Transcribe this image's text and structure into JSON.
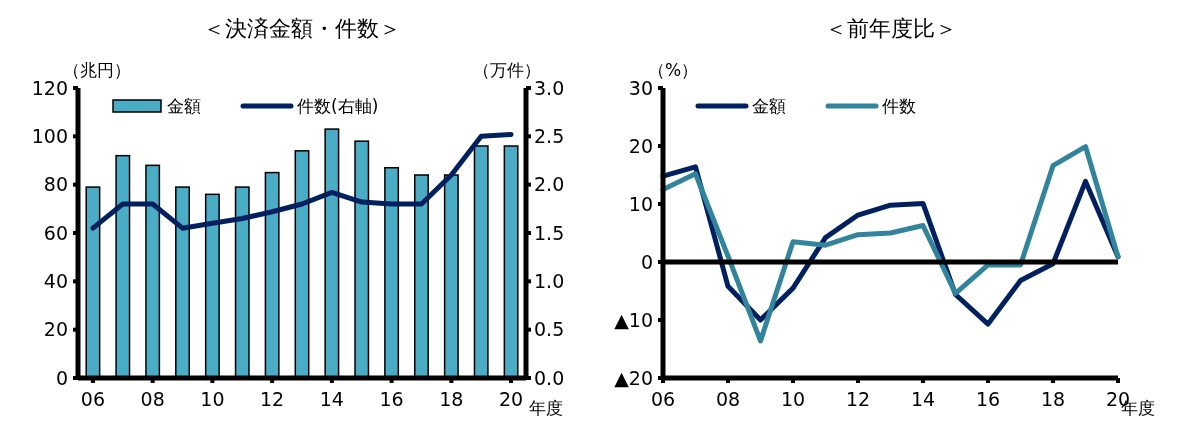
{
  "chart_data": [
    {
      "type": "bar",
      "title": "＜決済金額・件数＞",
      "ylabel": "（兆円）",
      "y2label": "（万件）",
      "xlabel": "年度",
      "x": [
        2006,
        2007,
        2008,
        2009,
        2010,
        2011,
        2012,
        2013,
        2014,
        2015,
        2016,
        2017,
        2018,
        2019,
        2020
      ],
      "xlim": [
        2005.5,
        2020.5
      ],
      "xticks": [
        {
          "value": 2006,
          "label": "06"
        },
        {
          "value": 2008,
          "label": "08"
        },
        {
          "value": 2010,
          "label": "10"
        },
        {
          "value": 2012,
          "label": "12"
        },
        {
          "value": 2014,
          "label": "14"
        },
        {
          "value": 2016,
          "label": "16"
        },
        {
          "value": 2018,
          "label": "18"
        },
        {
          "value": 2020,
          "label": "20"
        }
      ],
      "ylim": [
        0,
        120
      ],
      "yticks": [
        0,
        20,
        40,
        60,
        80,
        100,
        120
      ],
      "y2lim": [
        0,
        3
      ],
      "y2ticks": [
        {
          "value": 0,
          "label": "0.0"
        },
        {
          "value": 0.5,
          "label": "0.5"
        },
        {
          "value": 1,
          "label": "1.0"
        },
        {
          "value": 1.5,
          "label": "1.5"
        },
        {
          "value": 2,
          "label": "2.0"
        },
        {
          "value": 2.5,
          "label": "2.5"
        },
        {
          "value": 3,
          "label": "3.0"
        }
      ],
      "legend": "top left",
      "series": [
        {
          "name": "金額",
          "type": "bar",
          "color": "#4bacc6",
          "values": [
            79,
            92,
            88,
            79,
            76,
            79,
            85,
            94,
            103,
            98,
            87,
            84,
            84,
            96,
            96
          ]
        },
        {
          "name": "件数(右軸)",
          "type": "line",
          "axis": "y2",
          "color": "#002060",
          "values": [
            1.55,
            1.8,
            1.8,
            1.55,
            1.6,
            1.65,
            1.72,
            1.8,
            1.92,
            1.82,
            1.8,
            1.8,
            2.1,
            2.5,
            2.52
          ]
        }
      ]
    },
    {
      "type": "line",
      "title": "＜前年度比＞",
      "ylabel": "（%）",
      "xlabel": "年度",
      "x": [
        2006,
        2007,
        2008,
        2009,
        2010,
        2011,
        2012,
        2013,
        2014,
        2015,
        2016,
        2017,
        2018,
        2019,
        2020
      ],
      "xlim": [
        2006,
        2020
      ],
      "xticks": [
        {
          "value": 2006,
          "label": "06"
        },
        {
          "value": 2008,
          "label": "08"
        },
        {
          "value": 2010,
          "label": "10"
        },
        {
          "value": 2012,
          "label": "12"
        },
        {
          "value": 2014,
          "label": "14"
        },
        {
          "value": 2016,
          "label": "16"
        },
        {
          "value": 2018,
          "label": "18"
        },
        {
          "value": 2020,
          "label": "20"
        }
      ],
      "ylim": [
        -20,
        30
      ],
      "yticks": [
        {
          "value": -20,
          "label": "▲20"
        },
        {
          "value": -10,
          "label": "▲10"
        },
        0,
        10,
        20,
        30
      ],
      "ref_lines": [
        {
          "axis": "y",
          "value": 0,
          "color": "#000000"
        }
      ],
      "legend": "top left",
      "series": [
        {
          "name": "金額",
          "color": "#002060",
          "values": [
            14.8,
            16.4,
            -4.2,
            -10,
            -4.5,
            4.2,
            8.1,
            9.8,
            10.1,
            -5.6,
            -10.7,
            -3.2,
            -0.3,
            13.9,
            0.9
          ]
        },
        {
          "name": "件数",
          "color": "#31849b",
          "values": [
            12.5,
            15.2,
            1,
            -13.6,
            3.5,
            2.9,
            4.7,
            5,
            6.3,
            -5.4,
            -0.5,
            -0.5,
            16.6,
            19.9,
            0.9
          ]
        }
      ]
    }
  ]
}
